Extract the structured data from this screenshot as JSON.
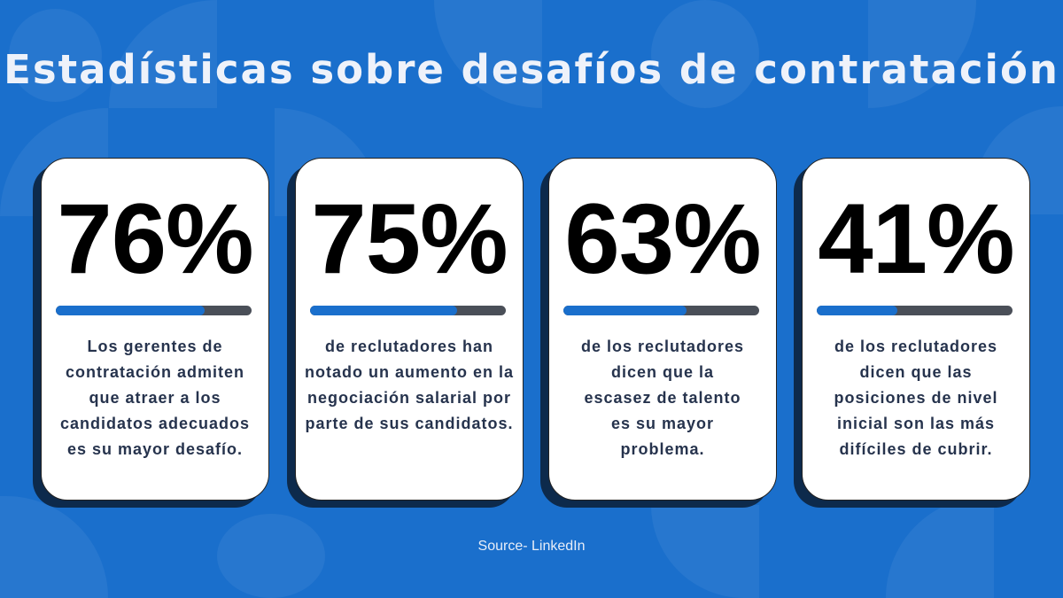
{
  "title": "Estadísticas sobre desafíos de contratación",
  "colors": {
    "background": "#1a6fcc",
    "bar_fill": "#1a6fcc",
    "bar_track": "#4a4f58",
    "text": "#26334d"
  },
  "stats": [
    {
      "value": "76%",
      "percent": 76,
      "text": "Los gerentes de contratación admiten que atraer a los candidatos adecuados es su mayor desafío."
    },
    {
      "value": "75%",
      "percent": 75,
      "text": "de reclutadores han notado un aumento en la negociación salarial por parte de sus candidatos."
    },
    {
      "value": "63%",
      "percent": 63,
      "text": "de los reclutadores dicen que la escasez de talento es su mayor problema."
    },
    {
      "value": "41%",
      "percent": 41,
      "text": "de los reclutadores dicen que las posiciones de nivel inicial son las más difíciles de cubrir."
    }
  ],
  "source": "Source- LinkedIn"
}
